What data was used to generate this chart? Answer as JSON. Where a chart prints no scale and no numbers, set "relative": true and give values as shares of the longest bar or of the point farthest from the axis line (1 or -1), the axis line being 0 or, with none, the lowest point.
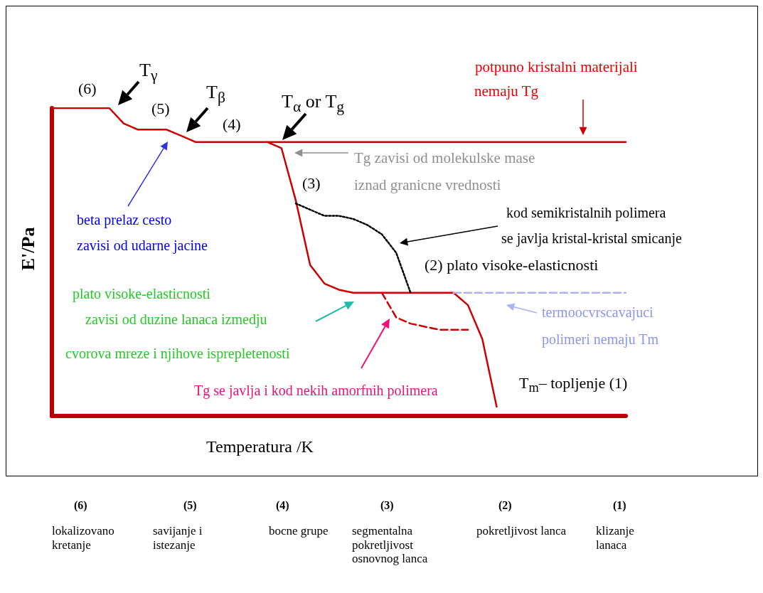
{
  "chart_data": {
    "type": "line",
    "relative": true,
    "marker": "none",
    "xlabel": "Temperatura /K",
    "ylabel": "E'/Pa",
    "categories": [
      null,
      null,
      null,
      null,
      null,
      null,
      null,
      null,
      null,
      null,
      null,
      null,
      null,
      null,
      null,
      null,
      null,
      null,
      null,
      null,
      null,
      null,
      null,
      null,
      null,
      null,
      null,
      null,
      null,
      null,
      null,
      null,
      null,
      null,
      null,
      null,
      null,
      null,
      null,
      null,
      null
    ],
    "series": [
      {
        "color": "#cc0000",
        "line_style": "solid",
        "values": [
          1,
          1,
          1,
          1,
          1,
          0.95,
          0.93,
          0.93,
          0.93,
          0.91,
          0.89,
          0.89,
          0.89,
          0.89,
          0.89,
          0.89,
          0.87,
          0.7,
          0.49,
          0.43,
          0.41,
          0.4,
          0.4,
          0.4,
          0.4,
          0.4,
          0.4,
          0.4,
          0.4,
          0.36,
          0.25,
          0.03,
          null,
          null,
          null,
          null,
          null,
          null,
          null,
          null,
          null
        ]
      },
      {
        "color": "#cc0000",
        "line_style": "solid",
        "values": [
          null,
          null,
          null,
          null,
          null,
          null,
          null,
          null,
          null,
          null,
          null,
          null,
          null,
          null,
          null,
          0.89,
          0.89,
          0.89,
          0.89,
          0.89,
          0.89,
          0.89,
          0.89,
          0.89,
          0.89,
          0.89,
          0.89,
          0.89,
          0.89,
          0.89,
          0.89,
          0.89,
          0.89,
          0.89,
          0.89,
          0.89,
          0.89,
          0.89,
          0.89,
          0.89,
          0.89
        ]
      },
      {
        "color": "#000000",
        "line_style": "dotted",
        "values": [
          null,
          null,
          null,
          null,
          null,
          null,
          null,
          null,
          null,
          null,
          null,
          null,
          null,
          null,
          null,
          null,
          null,
          0.69,
          0.67,
          0.65,
          0.65,
          0.64,
          0.62,
          0.59,
          0.53,
          0.4,
          null,
          null,
          null,
          null,
          null,
          null,
          null,
          null,
          null,
          null,
          null,
          null,
          null,
          null,
          null
        ]
      },
      {
        "color": "#aab4f0",
        "line_style": "dashed",
        "values": [
          null,
          null,
          null,
          null,
          null,
          null,
          null,
          null,
          null,
          null,
          null,
          null,
          null,
          null,
          null,
          null,
          null,
          null,
          null,
          null,
          null,
          null,
          null,
          null,
          null,
          null,
          null,
          null,
          0.4,
          0.4,
          0.4,
          0.4,
          0.4,
          0.4,
          0.4,
          0.4,
          0.4,
          0.4,
          0.4,
          0.4,
          0.4
        ]
      },
      {
        "color": "#cc0000",
        "line_style": "dashed",
        "values": [
          null,
          null,
          null,
          null,
          null,
          null,
          null,
          null,
          null,
          null,
          null,
          null,
          null,
          null,
          null,
          null,
          null,
          null,
          null,
          null,
          null,
          null,
          null,
          0.4,
          0.32,
          0.3,
          0.29,
          0.28,
          0.28,
          0.28,
          null,
          null,
          null,
          null,
          null,
          null,
          null,
          null,
          null,
          null,
          null
        ]
      }
    ],
    "annotations": [
      "(6)",
      "T$_{γ}$",
      "(5)",
      "T$_{β}$",
      "(4)",
      "T$_{α}$ or T$_{g}$",
      "potpuno kristalni materijali",
      "nemaju Tg",
      "Tg zavisi od molekulske mase",
      "iznad granicne vrednosti",
      "(3)",
      "beta prelaz cesto",
      "zavisi od udarne jacine",
      "kod semikristalnih polimera",
      "se javlja kristal-kristal smicanje",
      "(2) plato visoke-elasticnosti",
      "plato visoke-elasticnosti",
      "zavisi od duzine lanaca izmedju",
      "cvorova mreze i njihove isprepletenosti",
      "termoocvrscavajuci",
      "polimeri nemaju Tm",
      "Tg se javlja i kod nekih amorfnih polimera",
      "T$_{m}$– topljenje (1)",
      "(6)",
      "lokalizovano kretanje",
      "(5)",
      "savijanje i istezanje",
      "(4)",
      "bocne grupe",
      "(3)",
      "segmentalna pokretljivost osnovnog lanca",
      "(2)",
      "pokretljivost lanca",
      "(1)",
      "klizanje lanaca"
    ]
  }
}
